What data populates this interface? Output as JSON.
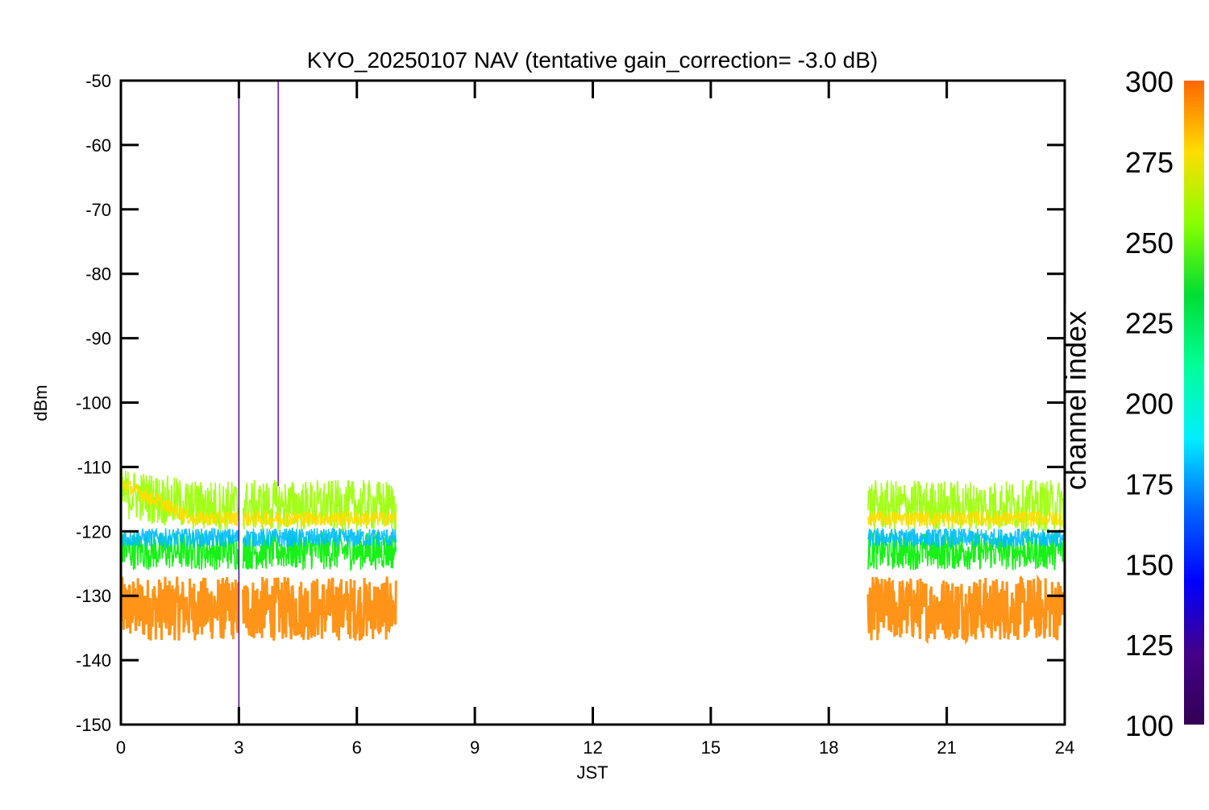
{
  "chart_data": {
    "type": "line",
    "title": "KYO_20250107 NAV (tentative gain_correction= -3.0 dB)",
    "xlabel": "JST",
    "ylabel": "dBm",
    "xlim": [
      0,
      24
    ],
    "ylim": [
      -150,
      -50
    ],
    "x_ticks": [
      0,
      3,
      6,
      9,
      12,
      15,
      18,
      21,
      24
    ],
    "y_ticks": [
      -50,
      -60,
      -70,
      -80,
      -90,
      -100,
      -110,
      -120,
      -130,
      -140,
      -150
    ],
    "grid": false,
    "legend": "none",
    "data_segments": [
      {
        "x_start": 0,
        "x_end": 7,
        "gap": [
          3.0,
          3.1
        ]
      },
      {
        "x_start": 19,
        "x_end": 24
      }
    ],
    "series_bands": [
      {
        "name": "",
        "channel": 265,
        "color": "#99ff00",
        "y_center": -116,
        "y_spread": 4
      },
      {
        "name": "",
        "channel": 275,
        "color": "#ffdd00",
        "y_center": -118,
        "y_spread": 1.2
      },
      {
        "name": "",
        "channel": 230,
        "color": "#00ee00",
        "y_center": -123,
        "y_spread": 3
      },
      {
        "name": "",
        "channel": 175,
        "color": "#00bbff",
        "y_center": -121,
        "y_spread": 1.5
      },
      {
        "name": "",
        "channel": 295,
        "color": "#ff8800",
        "y_center": -132,
        "y_spread": 5
      }
    ],
    "spikes": [
      {
        "x": 3.0,
        "y_top": -51,
        "y_bottom": -150,
        "color": "#440088"
      },
      {
        "x": 4.0,
        "y_top": -50,
        "y_bottom": -113,
        "color": "#6600aa"
      }
    ],
    "colorbar": {
      "label": "channel index",
      "min": 100,
      "max": 300,
      "ticks": [
        300,
        275,
        250,
        225,
        200,
        175,
        150,
        125,
        100
      ],
      "colors": [
        "#ff6600",
        "#ffdd00",
        "#88ff00",
        "#00dd33",
        "#00ff99",
        "#00eeff",
        "#0066ff",
        "#0000ff",
        "#440088",
        "#330055"
      ]
    }
  }
}
